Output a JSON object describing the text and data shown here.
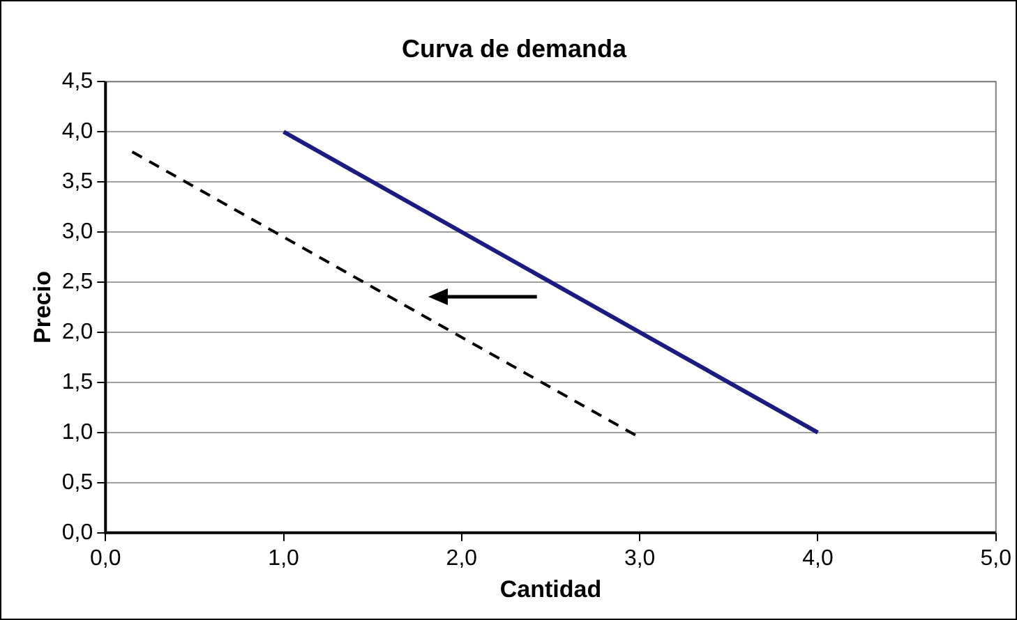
{
  "chart_data": {
    "type": "line",
    "title": "Curva de demanda",
    "xlabel": "Cantidad",
    "ylabel": "Precio",
    "series": [
      {
        "color": "#1c1c80",
        "x": [
          1.0,
          4.0
        ],
        "values": [
          4.0,
          1.0
        ],
        "line_style": "solid"
      },
      {
        "color": "#000000",
        "x": [
          0.15,
          3.0
        ],
        "values": [
          3.8,
          0.95
        ],
        "line_style": "dashed"
      }
    ],
    "xlim": [
      0,
      5
    ],
    "xticks": [
      {
        "value": 0,
        "label": "0,0"
      },
      {
        "value": 1,
        "label": "1,0"
      },
      {
        "value": 2,
        "label": "2,0"
      },
      {
        "value": 3,
        "label": "3,0"
      },
      {
        "value": 4,
        "label": "4,0"
      },
      {
        "value": 5,
        "label": "5,0"
      }
    ],
    "ylim": [
      0,
      4.5
    ],
    "yticks": [
      {
        "value": 0,
        "label": "0,0"
      },
      {
        "value": 0.5,
        "label": "0,5"
      },
      {
        "value": 1,
        "label": "1,0"
      },
      {
        "value": 1.5,
        "label": "1,5"
      },
      {
        "value": 2,
        "label": "2,0"
      },
      {
        "value": 2.5,
        "label": "2,5"
      },
      {
        "value": 3,
        "label": "3,0"
      },
      {
        "value": 3.5,
        "label": "3,5"
      },
      {
        "value": 4,
        "label": "4,0"
      },
      {
        "value": 4.5,
        "label": "4,5"
      }
    ],
    "grid": "y",
    "legend": false,
    "marker": "none"
  }
}
